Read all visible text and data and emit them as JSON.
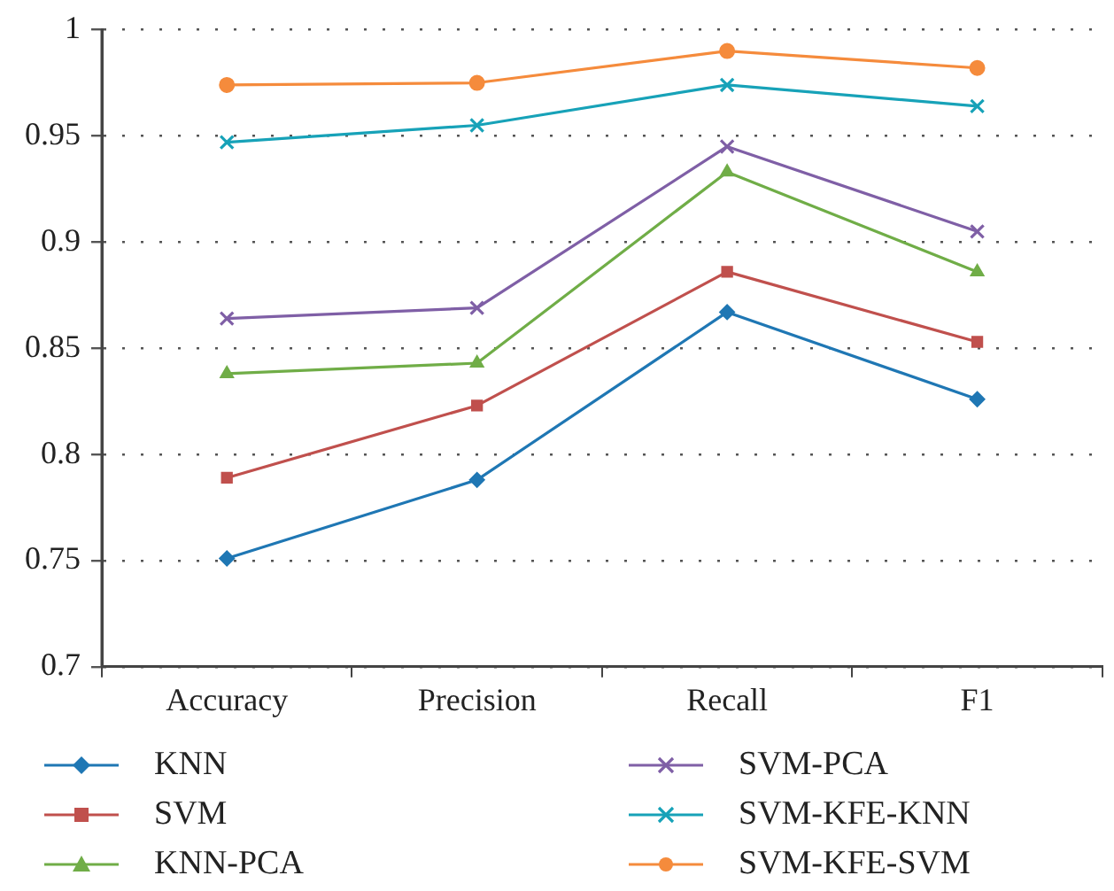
{
  "chart_data": {
    "type": "line",
    "categories": [
      "Accuracy",
      "Precision",
      "Recall",
      "F1"
    ],
    "ylim": [
      0.7,
      1
    ],
    "yticks": [
      0.7,
      0.75,
      0.8,
      0.85,
      0.9,
      0.95,
      1
    ],
    "grid": "y",
    "legend": "bottom",
    "line_style": "solid",
    "series": [
      {
        "name": "KNN",
        "color": "#1f77b4",
        "marker": "diamond",
        "values": [
          0.751,
          0.788,
          0.867,
          0.826
        ]
      },
      {
        "name": "SVM",
        "color": "#c0504d",
        "marker": "square",
        "values": [
          0.789,
          0.823,
          0.886,
          0.853
        ]
      },
      {
        "name": "KNN-PCA",
        "color": "#70ad47",
        "marker": "triangle",
        "values": [
          0.838,
          0.843,
          0.933,
          0.886
        ]
      },
      {
        "name": "SVM-PCA",
        "color": "#7f5fa6",
        "marker": "cross",
        "values": [
          0.864,
          0.869,
          0.945,
          0.905
        ]
      },
      {
        "name": "SVM-KFE-KNN",
        "color": "#17a2b8",
        "marker": "cross",
        "values": [
          0.947,
          0.955,
          0.974,
          0.964
        ]
      },
      {
        "name": "SVM-KFE-SVM",
        "color": "#f58b3c",
        "marker": "circle",
        "values": [
          0.974,
          0.975,
          0.99,
          0.982
        ]
      }
    ]
  }
}
